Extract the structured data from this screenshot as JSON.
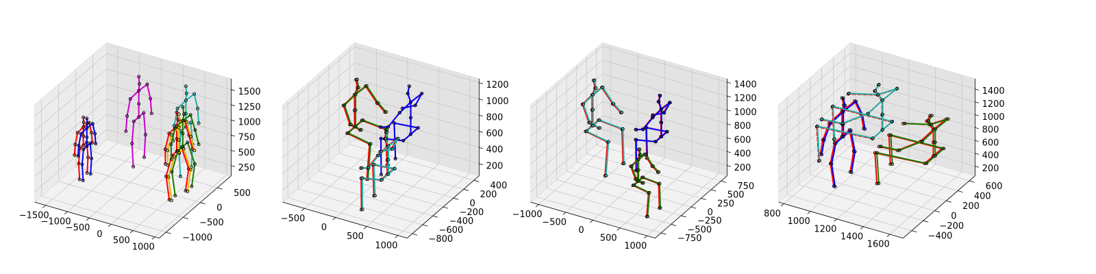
{
  "chart_data": [
    {
      "type": "3d-skeleton",
      "view": {
        "elev": 30,
        "azim": -60
      },
      "xlim": [
        -1750,
        1100
      ],
      "ylim": [
        -1200,
        900
      ],
      "zlim": [
        80,
        1680
      ],
      "xticks": [
        -1500,
        -1000,
        -500,
        0,
        500,
        1000
      ],
      "xtick_labels": [
        "−1500",
        "−1000",
        "−500",
        "0",
        "500",
        "1000"
      ],
      "yticks": [
        -1000,
        -500,
        0,
        500
      ],
      "ytick_labels": [
        "−1000",
        "−500",
        "0",
        "500"
      ],
      "zticks": [
        250,
        500,
        750,
        1000,
        1250,
        1500
      ],
      "ztick_labels": [
        "250",
        "500",
        "750",
        "1000",
        "1250",
        "1500"
      ],
      "skeletons": [
        {
          "color": "#ff0000",
          "dx": -1380,
          "dy": -250,
          "h": 1000,
          "pose": "stand",
          "f": 1.0,
          "dashed": false
        },
        {
          "color": "#0000ff",
          "dx": -1300,
          "dy": -250,
          "h": 1000,
          "pose": "stand",
          "f": 1.0,
          "dashed": false
        },
        {
          "color": "#cc00cc",
          "dx": -700,
          "dy": 500,
          "h": 1450,
          "pose": "stand",
          "f": 1.0,
          "dashed": false
        },
        {
          "color": "#20b2aa",
          "dx": 300,
          "dy": 600,
          "h": 1450,
          "pose": "stand",
          "f": 1.0,
          "dashed": false
        },
        {
          "color": "#ff0000",
          "dx": 600,
          "dy": -50,
          "h": 1400,
          "pose": "walk",
          "f": 1.0,
          "dashed": false
        },
        {
          "color": "#e6b800",
          "dx": 650,
          "dy": -50,
          "h": 1380,
          "pose": "walk",
          "f": 1.0,
          "dashed": false
        },
        {
          "color": "#1a7a00",
          "dx": 620,
          "dy": 100,
          "h": 1420,
          "pose": "walk",
          "f": 1.0,
          "dashed": false
        }
      ]
    },
    {
      "type": "3d-skeleton",
      "view": {
        "elev": 30,
        "azim": -60
      },
      "xlim": [
        -850,
        1150
      ],
      "ylim": [
        -900,
        500
      ],
      "zlim": [
        50,
        1250
      ],
      "xticks": [
        -500,
        0,
        500,
        1000
      ],
      "xtick_labels": [
        "−500",
        "0",
        "500",
        "1000"
      ],
      "yticks": [
        -800,
        -600,
        -400,
        -200,
        0,
        200,
        400
      ],
      "ytick_labels": [
        "−800",
        "−600",
        "−400",
        "−200",
        "0",
        "200",
        "400"
      ],
      "zticks": [
        200,
        400,
        600,
        800,
        1000,
        1200
      ],
      "ztick_labels": [
        "200",
        "400",
        "600",
        "800",
        "1000",
        "1200"
      ],
      "skeletons": [
        {
          "color": "#ff0000",
          "dx": -480,
          "dy": 50,
          "h": 1200,
          "pose": "sit",
          "f": 1.0,
          "dashed": false
        },
        {
          "color": "#1a7a00",
          "dx": -470,
          "dy": 60,
          "h": 1200,
          "pose": "sit",
          "f": 1.0,
          "dashed": false
        },
        {
          "color": "#ff0000",
          "dx": 300,
          "dy": 200,
          "h": 1200,
          "pose": "sit",
          "f": -1.0,
          "dashed": false
        },
        {
          "color": "#0000ff",
          "dx": 300,
          "dy": 200,
          "h": 1200,
          "pose": "sit",
          "f": -1.0,
          "dashed": false
        },
        {
          "color": "#ff0000",
          "dx": 500,
          "dy": -500,
          "h": 1050,
          "pose": "sit",
          "f": -1.0,
          "dashed": false
        },
        {
          "color": "#20b2aa",
          "dx": 510,
          "dy": -490,
          "h": 1050,
          "pose": "sit",
          "f": -1.0,
          "dashed": false
        }
      ]
    },
    {
      "type": "3d-skeleton",
      "view": {
        "elev": 30,
        "azim": -60
      },
      "xlim": [
        -1150,
        1150
      ],
      "ylim": [
        -900,
        900
      ],
      "zlim": [
        50,
        1450
      ],
      "xticks": [
        -1000,
        -500,
        0,
        500,
        1000
      ],
      "xtick_labels": [
        "−1000",
        "−500",
        "0",
        "500",
        "1000"
      ],
      "yticks": [
        -750,
        -500,
        -250,
        0,
        250,
        500,
        750
      ],
      "ytick_labels": [
        "−750",
        "−500",
        "−250",
        "0",
        "250",
        "500",
        "750"
      ],
      "zticks": [
        200,
        400,
        600,
        800,
        1000,
        1200,
        1400
      ],
      "ztick_labels": [
        "200",
        "400",
        "600",
        "800",
        "1000",
        "1200",
        "1400"
      ],
      "skeletons": [
        {
          "color": "#ff0000",
          "dx": -900,
          "dy": 300,
          "h": 1350,
          "pose": "sit",
          "f": 1.0,
          "dashed": false
        },
        {
          "color": "#20b2aa",
          "dx": -890,
          "dy": 310,
          "h": 1350,
          "pose": "sit",
          "f": 1.0,
          "dashed": false
        },
        {
          "color": "#ff0000",
          "dx": 150,
          "dy": 600,
          "h": 1200,
          "pose": "sit",
          "f": -1.0,
          "dashed": false
        },
        {
          "color": "#0000ff",
          "dx": 160,
          "dy": 600,
          "h": 1200,
          "pose": "sit",
          "f": -1.0,
          "dashed": false
        },
        {
          "color": "#ff0000",
          "dx": 420,
          "dy": -350,
          "h": 950,
          "pose": "sit",
          "f": 1.0,
          "dashed": false
        },
        {
          "color": "#1a7a00",
          "dx": 430,
          "dy": -340,
          "h": 950,
          "pose": "sit",
          "f": 1.0,
          "dashed": false
        }
      ]
    },
    {
      "type": "3d-skeleton",
      "view": {
        "elev": 30,
        "azim": -60
      },
      "xlim": [
        760,
        1700
      ],
      "ylim": [
        -550,
        700
      ],
      "zlim": [
        50,
        1560
      ],
      "xticks": [
        800,
        1000,
        1200,
        1400,
        1600
      ],
      "xtick_labels": [
        "800",
        "1000",
        "1200",
        "1400",
        "1600"
      ],
      "yticks": [
        -400,
        -200,
        0,
        200,
        400,
        600
      ],
      "ytick_labels": [
        "−400",
        "−200",
        "0",
        "200",
        "400",
        "600"
      ],
      "zticks": [
        200,
        400,
        600,
        800,
        1000,
        1200,
        1400
      ],
      "ztick_labels": [
        "200",
        "400",
        "600",
        "800",
        "1000",
        "1200",
        "1400"
      ],
      "skeletons": [
        {
          "color": "#ff0000",
          "dx": 1000,
          "dy": 0,
          "h": 1300,
          "pose": "stand",
          "f": 1.0,
          "dashed": false
        },
        {
          "color": "#0000ff",
          "dx": 1010,
          "dy": 0,
          "h": 1300,
          "pose": "stand",
          "f": 1.0,
          "dashed": false
        },
        {
          "color": "#ff0000",
          "dx": 1120,
          "dy": 420,
          "h": 1400,
          "pose": "sit",
          "f": -1.0,
          "dashed": true
        },
        {
          "color": "#20b2aa",
          "dx": 1120,
          "dy": 430,
          "h": 1400,
          "pose": "sit",
          "f": -1.0,
          "dashed": false
        },
        {
          "color": "#ff0000",
          "dx": 1550,
          "dy": 320,
          "h": 1250,
          "pose": "sit",
          "f": -1.0,
          "dashed": false
        },
        {
          "color": "#1a7a00",
          "dx": 1560,
          "dy": 330,
          "h": 1250,
          "pose": "sit",
          "f": -1.0,
          "dashed": false
        }
      ]
    }
  ]
}
